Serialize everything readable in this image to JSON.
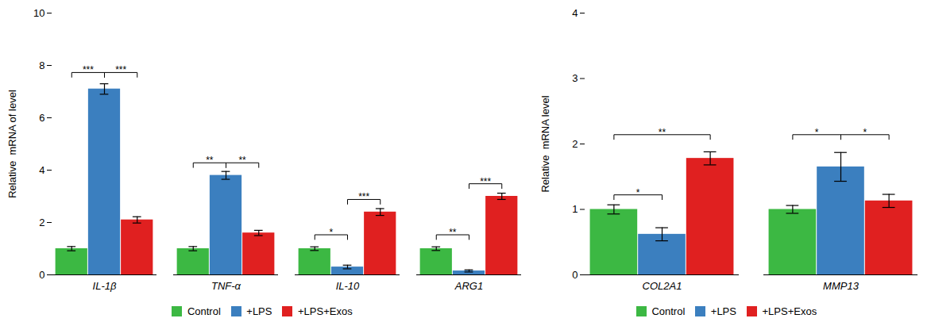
{
  "chart_data": [
    {
      "type": "bar",
      "ylabel": "Relative  mRNA of level",
      "categories": [
        "IL-1β",
        "TNF-α",
        "IL-10",
        "ARG1"
      ],
      "series": [
        {
          "name": "Control",
          "color": "#3cb843",
          "values": [
            1.0,
            1.0,
            1.0,
            1.0
          ],
          "errors": [
            0.08,
            0.08,
            0.07,
            0.07
          ]
        },
        {
          "name": "+LPS",
          "color": "#3b7fbf",
          "values": [
            7.1,
            3.8,
            0.3,
            0.15
          ],
          "errors": [
            0.2,
            0.15,
            0.07,
            0.04
          ]
        },
        {
          "name": "+LPS+Exos",
          "color": "#e02020",
          "values": [
            2.1,
            1.6,
            2.4,
            3.0
          ],
          "errors": [
            0.12,
            0.1,
            0.13,
            0.12
          ]
        }
      ],
      "ylim": [
        0,
        10
      ],
      "yticks": [
        0,
        2,
        4,
        6,
        8,
        10
      ],
      "legend": "bottom",
      "annotations": [
        {
          "text": "***",
          "category": "IL-1β",
          "from": "Control",
          "to": "+LPS",
          "y": 7.55
        },
        {
          "text": "***",
          "category": "IL-1β",
          "from": "+LPS",
          "to": "+LPS+Exos",
          "y": 7.55
        },
        {
          "text": "**",
          "category": "TNF-α",
          "from": "Control",
          "to": "+LPS",
          "y": 4.1
        },
        {
          "text": "**",
          "category": "TNF-α",
          "from": "+LPS",
          "to": "+LPS+Exos",
          "y": 4.1
        },
        {
          "text": "*",
          "category": "IL-10",
          "from": "Control",
          "to": "+LPS",
          "y": 1.35
        },
        {
          "text": "***",
          "category": "IL-10",
          "from": "+LPS",
          "to": "+LPS+Exos",
          "y": 2.7
        },
        {
          "text": "**",
          "category": "ARG1",
          "from": "Control",
          "to": "+LPS",
          "y": 1.35
        },
        {
          "text": "***",
          "category": "ARG1",
          "from": "+LPS",
          "to": "+LPS+Exos",
          "y": 3.3
        }
      ]
    },
    {
      "type": "bar",
      "ylabel": "Relative  mRNA level",
      "categories": [
        "COL2A1",
        "MMP13"
      ],
      "series": [
        {
          "name": "Control",
          "color": "#3cb843",
          "values": [
            1.0,
            1.0
          ],
          "errors": [
            0.07,
            0.06
          ]
        },
        {
          "name": "+LPS",
          "color": "#3b7fbf",
          "values": [
            0.62,
            1.65
          ],
          "errors": [
            0.1,
            0.22
          ]
        },
        {
          "name": "+LPS+Exos",
          "color": "#e02020",
          "values": [
            1.78,
            1.13
          ],
          "errors": [
            0.1,
            0.1
          ]
        }
      ],
      "ylim": [
        0,
        4
      ],
      "yticks": [
        0,
        1,
        2,
        3,
        4
      ],
      "legend": "bottom",
      "annotations": [
        {
          "text": "*",
          "category": "COL2A1",
          "from": "Control",
          "to": "+LPS",
          "y": 1.15
        },
        {
          "text": "**",
          "category": "COL2A1",
          "from": "Control",
          "to": "+LPS+Exos",
          "y": 2.07
        },
        {
          "text": "*",
          "category": "MMP13",
          "from": "Control",
          "to": "+LPS",
          "y": 2.07
        },
        {
          "text": "*",
          "category": "MMP13",
          "from": "+LPS",
          "to": "+LPS+Exos",
          "y": 2.07
        }
      ]
    }
  ]
}
